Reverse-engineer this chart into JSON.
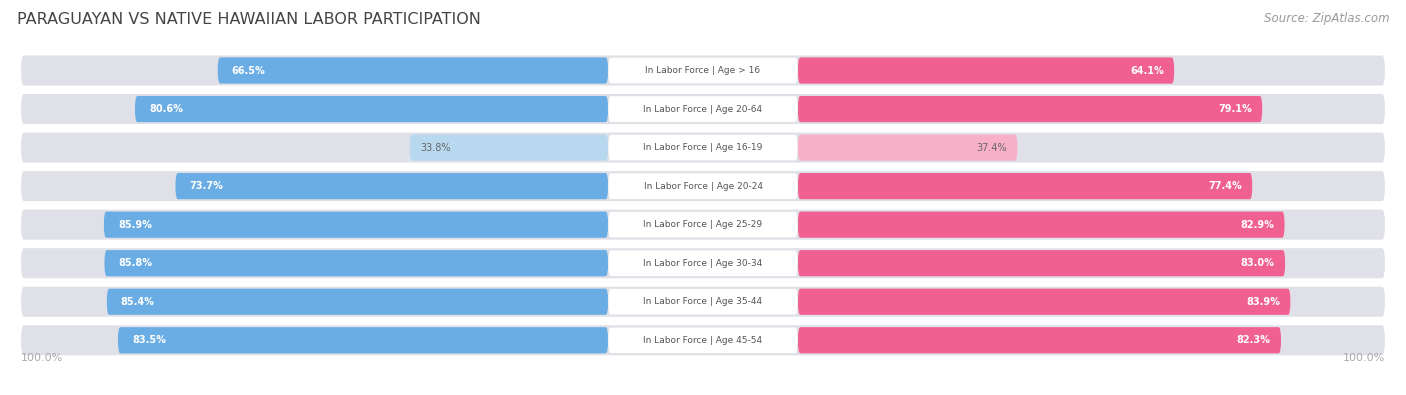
{
  "title": "PARAGUAYAN VS NATIVE HAWAIIAN LABOR PARTICIPATION",
  "source": "Source: ZipAtlas.com",
  "categories": [
    "In Labor Force | Age > 16",
    "In Labor Force | Age 20-64",
    "In Labor Force | Age 16-19",
    "In Labor Force | Age 20-24",
    "In Labor Force | Age 25-29",
    "In Labor Force | Age 30-34",
    "In Labor Force | Age 35-44",
    "In Labor Force | Age 45-54"
  ],
  "paraguayan": [
    66.5,
    80.6,
    33.8,
    73.7,
    85.9,
    85.8,
    85.4,
    83.5
  ],
  "native_hawaiian": [
    64.1,
    79.1,
    37.4,
    77.4,
    82.9,
    83.0,
    83.9,
    82.3
  ],
  "paraguayan_color": "#6aade4",
  "paraguayan_light_color": "#b8d8f0",
  "native_hawaiian_color": "#f06090",
  "native_hawaiian_light_color": "#f8b0c8",
  "pill_bg_color": "#e0e0e8",
  "label_bg_color": "#ffffff",
  "fig_bg_color": "#ffffff",
  "title_color": "#444444",
  "source_color": "#999999",
  "axis_label_color": "#aaaaaa",
  "value_text_white": "#ffffff",
  "value_text_dark": "#666666",
  "legend_labels": [
    "Paraguayan",
    "Native Hawaiian"
  ],
  "max_value": 100.0
}
